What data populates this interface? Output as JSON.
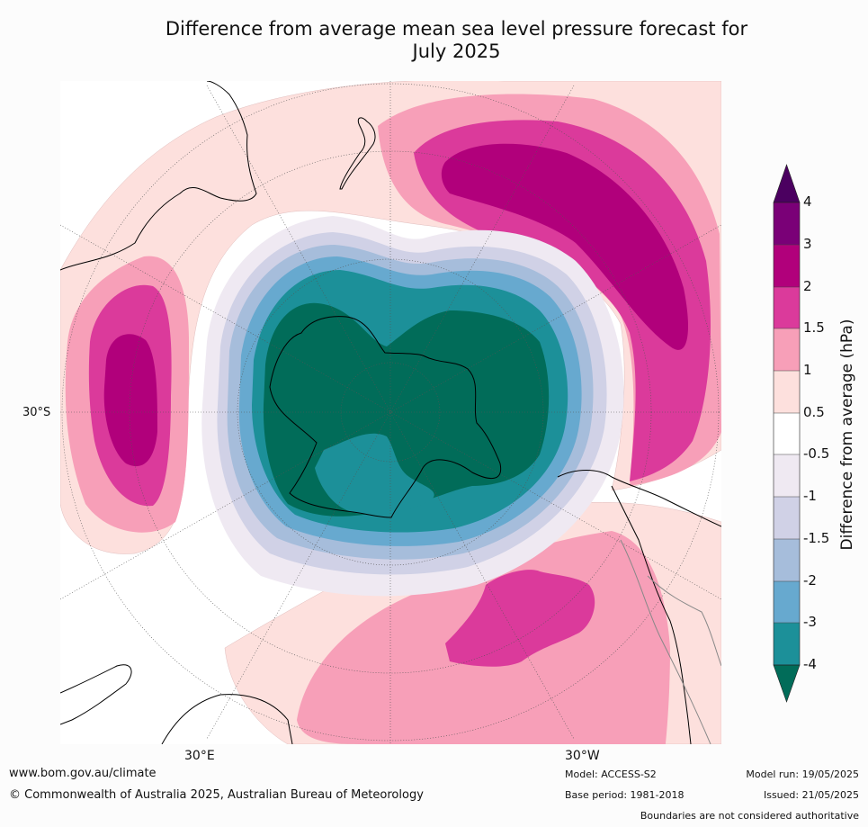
{
  "title_line1": "Difference from average mean sea level pressure forecast for",
  "title_line2": "July 2025",
  "lat_labels": {
    "lat30s": "30°S"
  },
  "lon_labels": {
    "lon30e": "30°E",
    "lon30w": "30°W"
  },
  "colorbar": {
    "title": "Difference from average (hPa)",
    "ticks": [
      "4",
      "3",
      "2",
      "1.5",
      "1",
      "0.5",
      "-0.5",
      "-1",
      "-1.5",
      "-2",
      "-3",
      "-4"
    ],
    "colors": {
      "gt4": "#4b0060",
      "3to4": "#7a0077",
      "2to3": "#b1007b",
      "1.5to2": "#db3a9b",
      "1to1.5": "#f79fb8",
      "0.5to1": "#fde0dd",
      "neutral": "#ffffff",
      "m0.5tom1": "#efe9f2",
      "m1tom1.5": "#d0d1e6",
      "m1.5tom2": "#a6bddb",
      "m2tom3": "#67a9cf",
      "m3tom4": "#1c9099",
      "lt_m4": "#016c59"
    }
  },
  "footer": {
    "url": "www.bom.gov.au/climate",
    "copyright": "© Commonwealth of Australia 2025, Australian Bureau of Meteorology",
    "model": "Model: ACCESS-S2",
    "base_period": "Base period: 1981-2018",
    "model_run": "Model run: 19/05/2025",
    "issued": "Issued: 21/05/2025",
    "boundaries": "Boundaries are not considered authoritative"
  }
}
